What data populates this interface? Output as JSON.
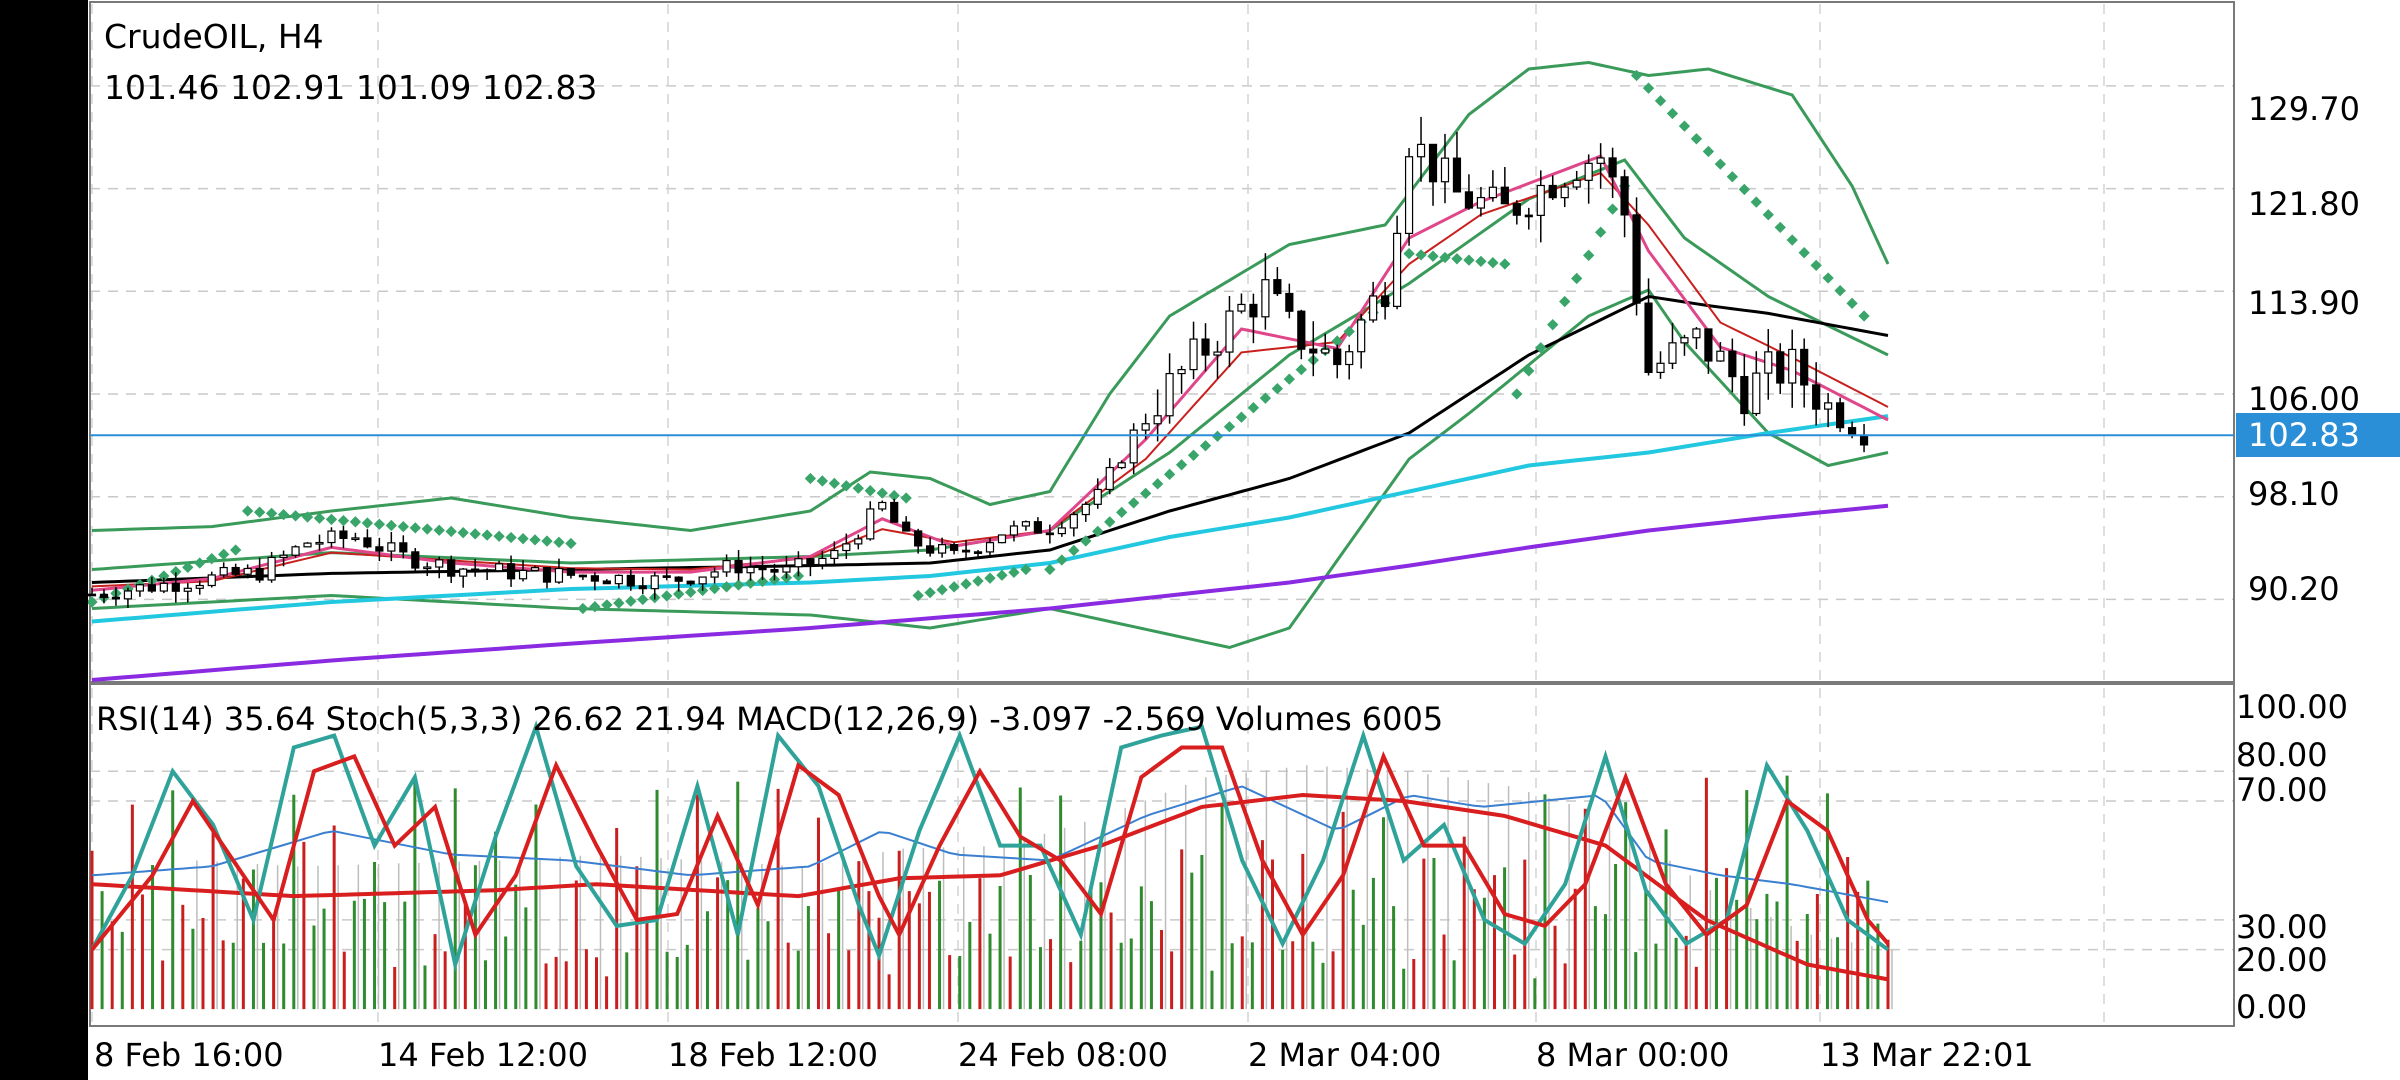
{
  "header": {
    "symbol_timeframe": "CrudeOIL, H4",
    "ohlc": "101.46 102.91 101.09 102.83"
  },
  "indicator_header": {
    "text": "RSI(14) 35.64 Stoch(5,3,3) 26.62 21.94 MACD(12,26,9) -3.097 -2.569 Volumes 6005"
  },
  "price_axis": {
    "ticks": [
      "129.70",
      "121.80",
      "113.90",
      "106.00",
      "98.10",
      "90.20"
    ],
    "current_price": "102.83"
  },
  "indicator_axis": {
    "ticks": [
      "100.00",
      "80.00",
      "70.00",
      "30.00",
      "20.00",
      "0.00"
    ]
  },
  "time_axis": {
    "ticks": [
      "8 Feb 16:00",
      "14 Feb 12:00",
      "18 Feb 12:00",
      "24 Feb 08:00",
      "2 Mar 04:00",
      "8 Mar 00:00",
      "13 Mar 22:01"
    ]
  },
  "colors": {
    "candle_up": "#ffffff",
    "candle_down": "#000000",
    "bollinger": "#3a9a5a",
    "sar": "#3aa56a",
    "ma_fast": "#e0468a",
    "ma_mid": "#c8201e",
    "ma_slow": "#000000",
    "ma_100": "#22c8e0",
    "ma_200": "#8a2be2",
    "price_line": "#2a8fd6",
    "price_badge": "#2a8fd6",
    "stoch_main": "#2fa39a",
    "stoch_signal": "#d81e1e",
    "rsi": "#3a7fd0",
    "macd_signal": "#d81e1e",
    "vol_up": "#2e8b2e",
    "vol_down": "#c81e1e"
  },
  "chart_data": {
    "type": "candlestick",
    "title": "CrudeOIL, H4",
    "price_range": [
      84.0,
      136.0
    ],
    "indicator_range": [
      -5,
      108
    ],
    "last_price": 102.83,
    "x": [
      "8 Feb 16:00",
      "14 Feb 12:00",
      "18 Feb 12:00",
      "24 Feb 08:00",
      "2 Mar 04:00",
      "8 Mar 00:00",
      "13 Mar 22:01"
    ],
    "price_path": [
      [
        0,
        90.6
      ],
      [
        8,
        91.6
      ],
      [
        14,
        92.3
      ],
      [
        18,
        94.6
      ],
      [
        22,
        95.0
      ],
      [
        26,
        93.5
      ],
      [
        30,
        92.7
      ],
      [
        36,
        92.2
      ],
      [
        42,
        92.0
      ],
      [
        48,
        91.6
      ],
      [
        54,
        92.8
      ],
      [
        58,
        92.3
      ],
      [
        62,
        93.6
      ],
      [
        66,
        97.4
      ],
      [
        68,
        94.8
      ],
      [
        72,
        93.5
      ],
      [
        76,
        95.4
      ],
      [
        80,
        95.8
      ],
      [
        84,
        98.1
      ],
      [
        88,
        104.5
      ],
      [
        92,
        108.6
      ],
      [
        96,
        112.5
      ],
      [
        98,
        113.9
      ],
      [
        100,
        111.0
      ],
      [
        104,
        108.4
      ],
      [
        108,
        114.5
      ],
      [
        110,
        125.7
      ],
      [
        114,
        121.3
      ],
      [
        118,
        120.0
      ],
      [
        120,
        121.3
      ],
      [
        124,
        123.8
      ],
      [
        126,
        124.3
      ],
      [
        128,
        119.9
      ],
      [
        130,
        107.8
      ],
      [
        134,
        110.1
      ],
      [
        136,
        108.5
      ],
      [
        138,
        106.2
      ],
      [
        140,
        107.6
      ],
      [
        142,
        108.0
      ],
      [
        146,
        104.0
      ],
      [
        148,
        102.8
      ]
    ],
    "bollinger_upper": [
      [
        0,
        95.5
      ],
      [
        10,
        95.8
      ],
      [
        20,
        97.0
      ],
      [
        30,
        98.0
      ],
      [
        40,
        96.5
      ],
      [
        50,
        95.5
      ],
      [
        60,
        97.0
      ],
      [
        65,
        100.0
      ],
      [
        70,
        99.5
      ],
      [
        75,
        97.5
      ],
      [
        80,
        98.5
      ],
      [
        85,
        106.0
      ],
      [
        90,
        112.0
      ],
      [
        100,
        117.5
      ],
      [
        108,
        119.0
      ],
      [
        115,
        127.5
      ],
      [
        120,
        131.0
      ],
      [
        125,
        131.5
      ],
      [
        130,
        130.5
      ],
      [
        135,
        131.0
      ],
      [
        142,
        129.0
      ],
      [
        147,
        122.0
      ],
      [
        150,
        116.0
      ]
    ],
    "bollinger_mid": [
      [
        0,
        92.5
      ],
      [
        20,
        93.8
      ],
      [
        40,
        93.0
      ],
      [
        60,
        93.5
      ],
      [
        70,
        94.0
      ],
      [
        80,
        95.5
      ],
      [
        90,
        101.5
      ],
      [
        100,
        109.0
      ],
      [
        110,
        114.5
      ],
      [
        120,
        121.0
      ],
      [
        128,
        124.0
      ],
      [
        133,
        118.0
      ],
      [
        140,
        113.5
      ],
      [
        150,
        109.0
      ]
    ],
    "bollinger_lower": [
      [
        0,
        89.5
      ],
      [
        20,
        90.5
      ],
      [
        40,
        89.5
      ],
      [
        60,
        89.0
      ],
      [
        70,
        88.0
      ],
      [
        80,
        89.5
      ],
      [
        90,
        87.5
      ],
      [
        95,
        86.5
      ],
      [
        100,
        88.0
      ],
      [
        110,
        101.0
      ],
      [
        115,
        104.5
      ],
      [
        125,
        112.0
      ],
      [
        130,
        114.0
      ],
      [
        133,
        110.0
      ],
      [
        140,
        103.0
      ],
      [
        145,
        100.5
      ],
      [
        150,
        101.5
      ]
    ],
    "ma_fast": [
      [
        0,
        90.9
      ],
      [
        10,
        91.8
      ],
      [
        20,
        94.2
      ],
      [
        30,
        93.0
      ],
      [
        40,
        92.3
      ],
      [
        50,
        92.3
      ],
      [
        60,
        93.5
      ],
      [
        66,
        96.4
      ],
      [
        72,
        94.3
      ],
      [
        80,
        95.5
      ],
      [
        88,
        102.5
      ],
      [
        96,
        111.0
      ],
      [
        104,
        109.5
      ],
      [
        110,
        118.0
      ],
      [
        116,
        120.8
      ],
      [
        126,
        124.3
      ],
      [
        130,
        117.0
      ],
      [
        136,
        109.6
      ],
      [
        142,
        107.8
      ],
      [
        150,
        104.0
      ]
    ],
    "ma_mid": [
      [
        0,
        91.2
      ],
      [
        10,
        91.6
      ],
      [
        20,
        93.8
      ],
      [
        30,
        93.2
      ],
      [
        40,
        92.6
      ],
      [
        50,
        92.5
      ],
      [
        60,
        93.4
      ],
      [
        66,
        95.6
      ],
      [
        72,
        94.6
      ],
      [
        80,
        95.5
      ],
      [
        88,
        101.0
      ],
      [
        96,
        109.2
      ],
      [
        104,
        110.0
      ],
      [
        110,
        116.0
      ],
      [
        116,
        119.8
      ],
      [
        126,
        123.0
      ],
      [
        130,
        119.0
      ],
      [
        136,
        111.5
      ],
      [
        142,
        108.8
      ],
      [
        150,
        105.0
      ]
    ],
    "ma_slow": [
      [
        0,
        91.5
      ],
      [
        20,
        92.2
      ],
      [
        40,
        92.5
      ],
      [
        60,
        92.8
      ],
      [
        70,
        93.0
      ],
      [
        80,
        94.0
      ],
      [
        90,
        97.0
      ],
      [
        100,
        99.5
      ],
      [
        110,
        103.0
      ],
      [
        120,
        109.0
      ],
      [
        130,
        113.5
      ],
      [
        135,
        112.8
      ],
      [
        140,
        112.2
      ],
      [
        150,
        110.5
      ]
    ],
    "ma_100": [
      [
        0,
        88.5
      ],
      [
        20,
        90.0
      ],
      [
        40,
        91.0
      ],
      [
        60,
        91.5
      ],
      [
        70,
        92.0
      ],
      [
        80,
        93.0
      ],
      [
        90,
        95.0
      ],
      [
        100,
        96.5
      ],
      [
        110,
        98.5
      ],
      [
        120,
        100.5
      ],
      [
        130,
        101.5
      ],
      [
        140,
        103.0
      ],
      [
        150,
        104.3
      ]
    ],
    "ma_200": [
      [
        0,
        84.0
      ],
      [
        20,
        85.5
      ],
      [
        40,
        86.8
      ],
      [
        60,
        88.0
      ],
      [
        80,
        89.5
      ],
      [
        100,
        91.5
      ],
      [
        110,
        92.8
      ],
      [
        120,
        94.2
      ],
      [
        130,
        95.5
      ],
      [
        140,
        96.5
      ],
      [
        150,
        97.4
      ]
    ],
    "sar": {
      "start": 0,
      "end": 148,
      "segments": [
        [
          0,
          90.0,
          12,
          94.0
        ],
        [
          13,
          97.0,
          40,
          94.5
        ],
        [
          41,
          89.5,
          59,
          92.0
        ],
        [
          60,
          99.5,
          68,
          98.0
        ],
        [
          69,
          90.5,
          78,
          92.5
        ],
        [
          80,
          92.5,
          108,
          113.0
        ],
        [
          110,
          116.8,
          118,
          116.0
        ],
        [
          119,
          106.0,
          128,
          122.0
        ],
        [
          129,
          130.5,
          148,
          112.0
        ]
      ]
    },
    "stoch_main": [
      [
        0,
        20
      ],
      [
        4,
        45
      ],
      [
        8,
        80
      ],
      [
        12,
        62
      ],
      [
        16,
        30
      ],
      [
        20,
        88
      ],
      [
        24,
        92
      ],
      [
        28,
        55
      ],
      [
        32,
        78
      ],
      [
        36,
        15
      ],
      [
        40,
        58
      ],
      [
        44,
        95
      ],
      [
        48,
        48
      ],
      [
        52,
        28
      ],
      [
        56,
        30
      ],
      [
        60,
        75
      ],
      [
        64,
        25
      ],
      [
        68,
        92
      ],
      [
        72,
        75
      ],
      [
        76,
        35
      ],
      [
        78,
        18
      ],
      [
        82,
        60
      ],
      [
        86,
        92
      ],
      [
        90,
        55
      ],
      [
        94,
        55
      ],
      [
        98,
        25
      ],
      [
        102,
        88
      ],
      [
        106,
        92
      ],
      [
        110,
        95
      ],
      [
        114,
        50
      ],
      [
        118,
        22
      ],
      [
        122,
        50
      ],
      [
        126,
        92
      ],
      [
        130,
        50
      ],
      [
        134,
        62
      ],
      [
        138,
        30
      ],
      [
        142,
        22
      ],
      [
        146,
        42
      ],
      [
        150,
        85
      ],
      [
        154,
        40
      ],
      [
        158,
        22
      ],
      [
        162,
        30
      ],
      [
        166,
        82
      ],
      [
        170,
        60
      ],
      [
        174,
        30
      ],
      [
        178,
        20
      ]
    ],
    "stoch_signal": [
      [
        0,
        20
      ],
      [
        6,
        45
      ],
      [
        10,
        70
      ],
      [
        14,
        50
      ],
      [
        18,
        30
      ],
      [
        22,
        80
      ],
      [
        26,
        85
      ],
      [
        30,
        55
      ],
      [
        34,
        68
      ],
      [
        38,
        25
      ],
      [
        42,
        45
      ],
      [
        46,
        82
      ],
      [
        50,
        55
      ],
      [
        54,
        30
      ],
      [
        58,
        32
      ],
      [
        62,
        65
      ],
      [
        66,
        35
      ],
      [
        70,
        82
      ],
      [
        74,
        72
      ],
      [
        78,
        38
      ],
      [
        80,
        25
      ],
      [
        84,
        55
      ],
      [
        88,
        80
      ],
      [
        92,
        58
      ],
      [
        96,
        50
      ],
      [
        100,
        32
      ],
      [
        104,
        78
      ],
      [
        108,
        88
      ],
      [
        112,
        88
      ],
      [
        116,
        50
      ],
      [
        120,
        25
      ],
      [
        124,
        45
      ],
      [
        128,
        85
      ],
      [
        132,
        55
      ],
      [
        136,
        55
      ],
      [
        140,
        32
      ],
      [
        144,
        28
      ],
      [
        148,
        42
      ],
      [
        152,
        78
      ],
      [
        156,
        42
      ],
      [
        160,
        25
      ],
      [
        164,
        35
      ],
      [
        168,
        70
      ],
      [
        172,
        60
      ],
      [
        176,
        30
      ],
      [
        178,
        22
      ]
    ],
    "rsi": [
      [
        0,
        45
      ],
      [
        10,
        48
      ],
      [
        20,
        60
      ],
      [
        30,
        52
      ],
      [
        40,
        50
      ],
      [
        50,
        45
      ],
      [
        60,
        48
      ],
      [
        66,
        60
      ],
      [
        72,
        52
      ],
      [
        80,
        50
      ],
      [
        88,
        65
      ],
      [
        96,
        75
      ],
      [
        104,
        60
      ],
      [
        110,
        72
      ],
      [
        116,
        68
      ],
      [
        126,
        72
      ],
      [
        130,
        50
      ],
      [
        136,
        45
      ],
      [
        142,
        42
      ],
      [
        150,
        36
      ]
    ],
    "macd_signal": [
      [
        0,
        42
      ],
      [
        20,
        38
      ],
      [
        40,
        40
      ],
      [
        50,
        42
      ],
      [
        60,
        40
      ],
      [
        70,
        38
      ],
      [
        80,
        44
      ],
      [
        90,
        45
      ],
      [
        100,
        55
      ],
      [
        110,
        68
      ],
      [
        120,
        72
      ],
      [
        130,
        70
      ],
      [
        140,
        65
      ],
      [
        150,
        55
      ],
      [
        160,
        30
      ],
      [
        170,
        15
      ],
      [
        178,
        10
      ]
    ],
    "volumes_last": 6005,
    "indicators": {
      "RSI(14)": 35.64,
      "Stoch(5,3,3)": [
        26.62,
        21.94
      ],
      "MACD(12,26,9)": [
        -3.097,
        -2.569
      ],
      "Volumes": 6005
    }
  }
}
